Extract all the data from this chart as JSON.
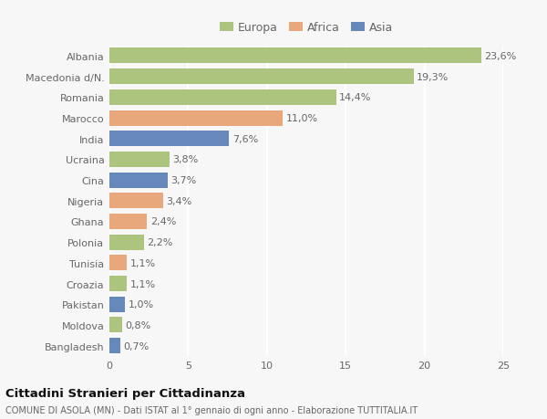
{
  "categories": [
    "Albania",
    "Macedonia d/N.",
    "Romania",
    "Marocco",
    "India",
    "Ucraina",
    "Cina",
    "Nigeria",
    "Ghana",
    "Polonia",
    "Tunisia",
    "Croazia",
    "Pakistan",
    "Moldova",
    "Bangladesh"
  ],
  "values": [
    23.6,
    19.3,
    14.4,
    11.0,
    7.6,
    3.8,
    3.7,
    3.4,
    2.4,
    2.2,
    1.1,
    1.1,
    1.0,
    0.8,
    0.7
  ],
  "labels": [
    "23,6%",
    "19,3%",
    "14,4%",
    "11,0%",
    "7,6%",
    "3,8%",
    "3,7%",
    "3,4%",
    "2,4%",
    "2,2%",
    "1,1%",
    "1,1%",
    "1,0%",
    "0,8%",
    "0,7%"
  ],
  "continents": [
    "Europa",
    "Europa",
    "Europa",
    "Africa",
    "Asia",
    "Europa",
    "Asia",
    "Africa",
    "Africa",
    "Europa",
    "Africa",
    "Europa",
    "Asia",
    "Europa",
    "Asia"
  ],
  "colors": {
    "Europa": "#adc47e",
    "Africa": "#e8a87c",
    "Asia": "#6688bb"
  },
  "xlim": [
    0,
    25
  ],
  "xticks": [
    0,
    5,
    10,
    15,
    20,
    25
  ],
  "background_color": "#f7f7f7",
  "title": "Cittadini Stranieri per Cittadinanza",
  "subtitle": "COMUNE DI ASOLA (MN) - Dati ISTAT al 1° gennaio di ogni anno - Elaborazione TUTTITALIA.IT",
  "grid_color": "#ffffff",
  "bar_height": 0.75,
  "text_color": "#666666",
  "label_fontsize": 8,
  "ytick_fontsize": 8,
  "xtick_fontsize": 8
}
